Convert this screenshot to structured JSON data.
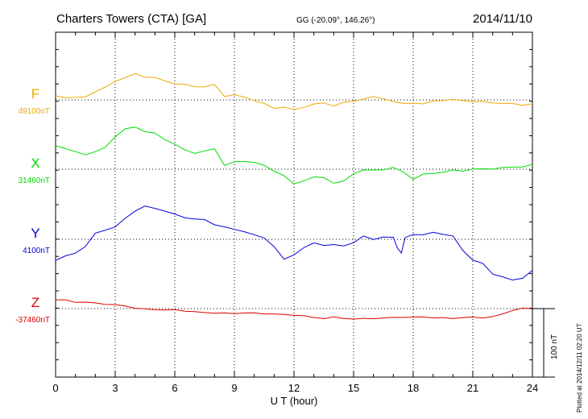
{
  "header": {
    "station": "Charters Towers (CTA)  [GA]",
    "coords": "GG (-20.09°, 146.26°)",
    "date": "2014/11/10"
  },
  "plotted_note": "Plotted at 2014/12/11 02:20 UT",
  "scale_label": "100 nT",
  "chart_data": {
    "type": "line",
    "title": "Charters Towers (CTA)  [GA]",
    "xlabel": "U T (hour)",
    "ylabel": "",
    "xlim": [
      0,
      24
    ],
    "x_ticks": [
      0,
      3,
      6,
      9,
      12,
      15,
      18,
      21,
      24
    ],
    "x_tick_labels": [
      "0",
      "3",
      "6",
      "9",
      "12",
      "15",
      "18",
      "21",
      "24"
    ],
    "grid": true,
    "scale_bar_nT": 100,
    "series": [
      {
        "name": "F",
        "baseline_label": "49100nT",
        "color": "#f0a800",
        "x": [
          0,
          0.5,
          1,
          1.5,
          2,
          2.5,
          3,
          3.5,
          4,
          4.5,
          5,
          5.5,
          6,
          6.5,
          7,
          7.5,
          8,
          8.5,
          9,
          9.5,
          10,
          10.5,
          11,
          11.5,
          12,
          12.5,
          13,
          13.5,
          14,
          14.5,
          15,
          15.5,
          16,
          16.5,
          17,
          17.5,
          18,
          18.5,
          19,
          19.5,
          20,
          20.5,
          21,
          21.5,
          22,
          22.5,
          23,
          23.5,
          24
        ],
        "nT": [
          6,
          4,
          3,
          5,
          12,
          18,
          28,
          32,
          38,
          34,
          32,
          28,
          24,
          22,
          20,
          19,
          22,
          6,
          7,
          4,
          0,
          -6,
          -12,
          -10,
          -15,
          -10,
          -6,
          -5,
          -8,
          -4,
          -2,
          2,
          4,
          2,
          -2,
          -6,
          -4,
          -6,
          -2,
          0,
          0,
          -1,
          -2,
          -3,
          -4,
          -5,
          -6,
          -7,
          -6
        ]
      },
      {
        "name": "X",
        "baseline_label": "31460nT",
        "color": "#00dd00",
        "x": [
          0,
          0.5,
          1,
          1.5,
          2,
          2.5,
          3,
          3.5,
          4,
          4.5,
          5,
          5.5,
          6,
          6.5,
          7,
          7.5,
          8,
          8.5,
          9,
          9.5,
          10,
          10.5,
          11,
          11.5,
          12,
          12.5,
          13,
          13.5,
          14,
          14.5,
          15,
          15.5,
          16,
          16.5,
          17,
          17.5,
          18,
          18.5,
          19,
          19.5,
          20,
          20.5,
          21,
          21.5,
          22,
          22.5,
          23,
          23.5,
          24
        ],
        "nT": [
          35,
          30,
          25,
          22,
          25,
          32,
          48,
          58,
          62,
          55,
          52,
          44,
          36,
          28,
          24,
          26,
          30,
          6,
          10,
          12,
          10,
          5,
          -2,
          -10,
          -22,
          -16,
          -12,
          -12,
          -20,
          -18,
          -6,
          -1,
          -2,
          0,
          2,
          -4,
          -14,
          -8,
          -6,
          -4,
          -2,
          -2,
          0,
          0,
          1,
          2,
          3,
          4,
          6
        ]
      },
      {
        "name": "Y",
        "baseline_label": "4100nT",
        "color": "#0000dd",
        "x": [
          0,
          0.5,
          1,
          1.5,
          2,
          2.5,
          3,
          3.5,
          4,
          4.5,
          5,
          5.5,
          6,
          6.5,
          7,
          7.5,
          8,
          8.5,
          9,
          9.5,
          10,
          10.5,
          11,
          11.5,
          12,
          12.5,
          13,
          13.5,
          14,
          14.5,
          15,
          15.5,
          16,
          16.5,
          17,
          17.2,
          17.4,
          17.6,
          18,
          18.5,
          19,
          19.5,
          20,
          20.5,
          21,
          21.5,
          22,
          22.5,
          23,
          23.5,
          24
        ],
        "nT": [
          -30,
          -25,
          -20,
          -10,
          8,
          14,
          18,
          30,
          42,
          48,
          45,
          42,
          36,
          32,
          30,
          28,
          22,
          18,
          14,
          12,
          6,
          2,
          -10,
          -30,
          -22,
          -12,
          -6,
          -8,
          -8,
          -10,
          -4,
          4,
          0,
          4,
          2,
          -12,
          -20,
          2,
          8,
          6,
          10,
          8,
          4,
          -16,
          -30,
          -36,
          -50,
          -55,
          -60,
          -56,
          -46
        ]
      },
      {
        "name": "Z",
        "baseline_label": "-37460nT",
        "color": "#dd0000",
        "x": [
          0,
          0.5,
          1,
          1.5,
          2,
          2.5,
          3,
          3.5,
          4,
          4.5,
          5,
          5.5,
          6,
          6.5,
          7,
          7.5,
          8,
          8.5,
          9,
          9.5,
          10,
          10.5,
          11,
          11.5,
          12,
          12.5,
          13,
          13.5,
          14,
          14.5,
          15,
          15.5,
          16,
          16.5,
          17,
          17.5,
          18,
          18.5,
          19,
          19.5,
          20,
          20.5,
          21,
          21.5,
          22,
          22.5,
          23,
          23.5,
          24
        ],
        "nT": [
          13,
          12,
          10,
          9,
          8,
          7,
          5,
          4,
          1,
          -1,
          -1,
          -2,
          -2,
          -3,
          -5,
          -6,
          -6,
          -7,
          -7,
          -6,
          -7,
          -7,
          -8,
          -9,
          -9,
          -11,
          -13,
          -14,
          -13,
          -14,
          -15,
          -15,
          -14,
          -14,
          -13,
          -12,
          -13,
          -12,
          -13,
          -14,
          -14,
          -13,
          -13,
          -13,
          -12,
          -8,
          -2,
          0,
          0
        ]
      }
    ]
  }
}
